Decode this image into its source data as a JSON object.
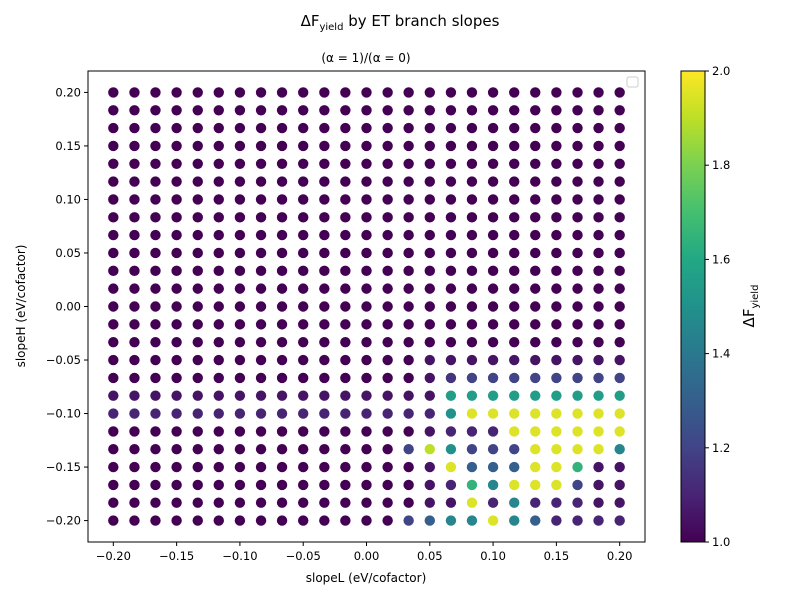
{
  "chart_data": {
    "type": "scatter",
    "title_main": "ΔF",
    "title_sub": "yield",
    "title_rest": " by ET branch slopes",
    "subtitle": "(α = 1)/(α = 0)",
    "xlabel": "slopeL (eV/cofactor)",
    "ylabel": "slopeH (eV/cofactor)",
    "xlim": [
      -0.22,
      0.22
    ],
    "ylim": [
      -0.22,
      0.22
    ],
    "xticks": [
      -0.2,
      -0.15,
      -0.1,
      -0.05,
      0.0,
      0.05,
      0.1,
      0.15,
      0.2
    ],
    "xtick_labels": [
      "−0.20",
      "−0.15",
      "−0.10",
      "−0.05",
      "0.00",
      "0.05",
      "0.10",
      "0.15",
      "0.20"
    ],
    "yticks": [
      -0.2,
      -0.15,
      -0.1,
      -0.05,
      0.0,
      0.05,
      0.1,
      0.15,
      0.2
    ],
    "ytick_labels": [
      "−0.20",
      "−0.15",
      "−0.10",
      "−0.05",
      "0.00",
      "0.05",
      "0.10",
      "0.15",
      "0.20"
    ],
    "grid": false,
    "legend": "top-right (empty)",
    "colormap": "viridis",
    "colorbar": {
      "label_main": "ΔF",
      "label_sub": "yield",
      "range": [
        1.0,
        2.0
      ],
      "ticks": [
        1.0,
        1.2,
        1.4,
        1.6,
        1.8,
        2.0
      ],
      "tick_labels": [
        "1.0",
        "1.2",
        "1.4",
        "1.6",
        "1.8",
        "2.0"
      ]
    },
    "x_values": [
      -0.2,
      -0.1833,
      -0.1667,
      -0.15,
      -0.1333,
      -0.1167,
      -0.1,
      -0.0833,
      -0.0667,
      -0.05,
      -0.0333,
      -0.0167,
      0.0,
      0.0167,
      0.0333,
      0.05,
      0.0667,
      0.0833,
      0.1,
      0.1167,
      0.1333,
      0.15,
      0.1667,
      0.1833,
      0.2
    ],
    "y_values": [
      0.2,
      0.1833,
      0.1667,
      0.15,
      0.1333,
      0.1167,
      0.1,
      0.0833,
      0.0667,
      0.05,
      0.0333,
      0.0167,
      0.0,
      -0.0167,
      -0.0333,
      -0.05,
      -0.0667,
      -0.0833,
      -0.1,
      -0.1167,
      -0.1333,
      -0.15,
      -0.1667,
      -0.1833,
      -0.2
    ],
    "base_value": 1.0,
    "value_rows": [
      {
        "y": -0.05,
        "values": [
          1.0,
          1.0,
          1.0,
          1.0,
          1.0,
          1.0,
          1.0,
          1.0,
          1.0,
          1.0,
          1.0,
          1.0,
          1.0,
          1.0,
          1.0,
          1.05,
          1.05,
          1.05,
          1.05,
          1.05,
          1.05,
          1.05,
          1.05,
          1.05,
          1.05
        ]
      },
      {
        "y": -0.0667,
        "values": [
          1.0,
          1.0,
          1.0,
          1.0,
          1.0,
          1.0,
          1.0,
          1.0,
          1.0,
          1.0,
          1.0,
          1.0,
          1.0,
          1.0,
          1.0,
          1.05,
          1.15,
          1.2,
          1.2,
          1.2,
          1.2,
          1.2,
          1.2,
          1.2,
          1.2
        ]
      },
      {
        "y": -0.0833,
        "values": [
          1.05,
          1.05,
          1.05,
          1.05,
          1.05,
          1.05,
          1.05,
          1.05,
          1.05,
          1.05,
          1.05,
          1.05,
          1.05,
          1.05,
          1.05,
          1.05,
          1.55,
          1.55,
          1.55,
          1.55,
          1.55,
          1.55,
          1.55,
          1.55,
          1.55
        ]
      },
      {
        "y": -0.1,
        "values": [
          1.1,
          1.1,
          1.1,
          1.1,
          1.1,
          1.1,
          1.1,
          1.1,
          1.1,
          1.1,
          1.1,
          1.1,
          1.1,
          1.1,
          1.1,
          1.1,
          1.5,
          1.95,
          1.95,
          1.95,
          1.95,
          1.95,
          1.95,
          1.95,
          1.95
        ]
      },
      {
        "y": -0.1167,
        "values": [
          1.0,
          1.0,
          1.0,
          1.0,
          1.0,
          1.0,
          1.0,
          1.0,
          1.0,
          1.0,
          1.0,
          1.0,
          1.0,
          1.0,
          1.0,
          1.05,
          1.1,
          1.1,
          1.1,
          1.95,
          1.95,
          1.95,
          1.95,
          1.95,
          1.95
        ]
      },
      {
        "y": -0.1333,
        "values": [
          1.0,
          1.0,
          1.0,
          1.0,
          1.0,
          1.0,
          1.0,
          1.0,
          1.0,
          1.0,
          1.0,
          1.0,
          1.0,
          1.0,
          1.2,
          1.9,
          1.5,
          1.2,
          1.2,
          1.2,
          1.95,
          1.95,
          1.95,
          1.95,
          1.45
        ]
      },
      {
        "y": -0.15,
        "values": [
          1.0,
          1.0,
          1.0,
          1.0,
          1.0,
          1.0,
          1.0,
          1.0,
          1.0,
          1.0,
          1.0,
          1.0,
          1.0,
          1.0,
          1.0,
          1.05,
          1.95,
          1.3,
          1.3,
          1.3,
          1.95,
          1.95,
          1.65,
          1.05,
          1.05
        ]
      },
      {
        "y": -0.1667,
        "values": [
          1.0,
          1.0,
          1.0,
          1.0,
          1.0,
          1.0,
          1.0,
          1.0,
          1.0,
          1.0,
          1.0,
          1.0,
          1.0,
          1.0,
          1.0,
          1.05,
          1.1,
          1.65,
          1.45,
          1.95,
          1.95,
          1.95,
          1.2,
          1.05,
          1.05
        ]
      },
      {
        "y": -0.1833,
        "values": [
          1.0,
          1.0,
          1.0,
          1.0,
          1.0,
          1.0,
          1.0,
          1.0,
          1.0,
          1.0,
          1.0,
          1.0,
          1.0,
          1.0,
          1.0,
          1.05,
          1.05,
          1.95,
          1.1,
          1.45,
          1.1,
          1.1,
          1.1,
          1.05,
          1.05
        ]
      },
      {
        "y": -0.2,
        "values": [
          1.0,
          1.0,
          1.0,
          1.0,
          1.0,
          1.0,
          1.0,
          1.0,
          1.0,
          1.0,
          1.0,
          1.0,
          1.0,
          1.0,
          1.2,
          1.3,
          1.45,
          1.45,
          1.95,
          1.45,
          1.3,
          1.1,
          1.1,
          1.1,
          1.1
        ]
      }
    ]
  }
}
